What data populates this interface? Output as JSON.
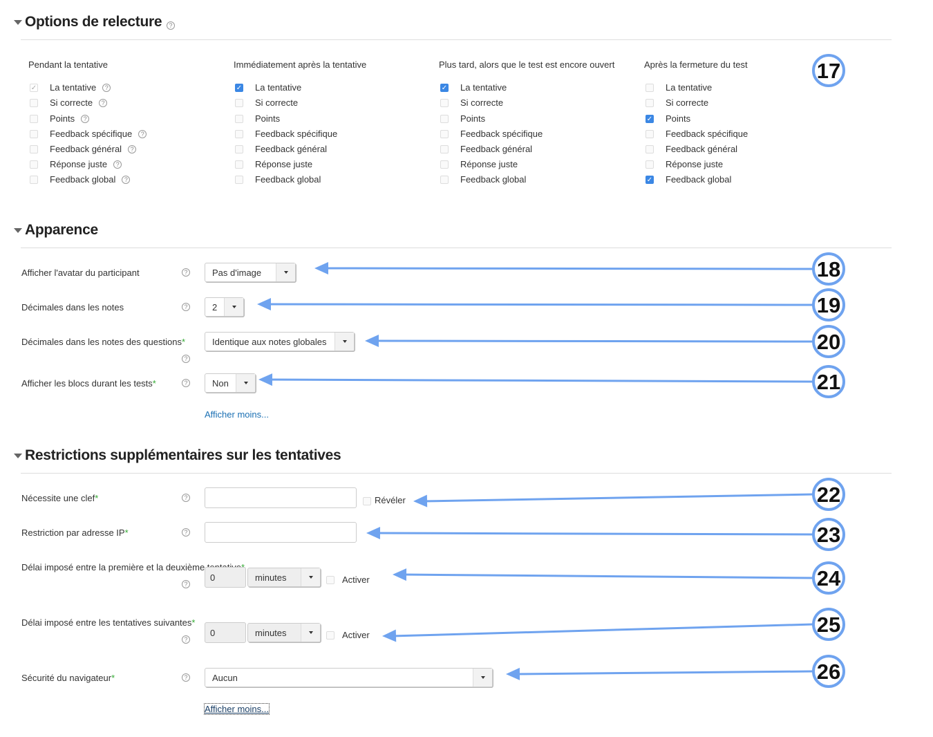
{
  "review": {
    "title": "Options de relecture",
    "columns": [
      {
        "header": "Pendant la tentative",
        "items": [
          {
            "label": "La tentative",
            "checked": true,
            "disabled": true
          },
          {
            "label": "Si correcte",
            "checked": false
          },
          {
            "label": "Points",
            "checked": false
          },
          {
            "label": "Feedback spécifique",
            "checked": false
          },
          {
            "label": "Feedback général",
            "checked": false
          },
          {
            "label": "Réponse juste",
            "checked": false
          },
          {
            "label": "Feedback global",
            "checked": false
          }
        ]
      },
      {
        "header": "Immédiatement après la tentative",
        "items": [
          {
            "label": "La tentative",
            "checked": true
          },
          {
            "label": "Si correcte",
            "checked": false
          },
          {
            "label": "Points",
            "checked": false
          },
          {
            "label": "Feedback spécifique",
            "checked": false
          },
          {
            "label": "Feedback général",
            "checked": false
          },
          {
            "label": "Réponse juste",
            "checked": false
          },
          {
            "label": "Feedback global",
            "checked": false
          }
        ]
      },
      {
        "header": "Plus tard, alors que le test est encore ouvert",
        "items": [
          {
            "label": "La tentative",
            "checked": true
          },
          {
            "label": "Si correcte",
            "checked": false
          },
          {
            "label": "Points",
            "checked": false
          },
          {
            "label": "Feedback spécifique",
            "checked": false
          },
          {
            "label": "Feedback général",
            "checked": false
          },
          {
            "label": "Réponse juste",
            "checked": false
          },
          {
            "label": "Feedback global",
            "checked": false
          }
        ]
      },
      {
        "header": "Après la fermeture du test",
        "items": [
          {
            "label": "La tentative",
            "checked": false
          },
          {
            "label": "Si correcte",
            "checked": false
          },
          {
            "label": "Points",
            "checked": true
          },
          {
            "label": "Feedback spécifique",
            "checked": false
          },
          {
            "label": "Feedback général",
            "checked": false
          },
          {
            "label": "Réponse juste",
            "checked": false
          },
          {
            "label": "Feedback global",
            "checked": true
          }
        ]
      }
    ]
  },
  "appearance": {
    "title": "Apparence",
    "avatar_label": "Afficher l'avatar du participant",
    "avatar_value": "Pas d'image",
    "decimals_label": "Décimales dans les notes",
    "decimals_value": "2",
    "qdecimals_label": "Décimales dans les notes des questions",
    "qdecimals_value": "Identique aux notes globales",
    "blocks_label": "Afficher les blocs durant les tests",
    "blocks_value": "Non",
    "show_less": "Afficher moins..."
  },
  "restrictions": {
    "title": "Restrictions supplémentaires sur les tentatives",
    "password_label": "Nécessite une clef",
    "password_value": "",
    "reveal_label": "Révéler",
    "ip_label": "Restriction par adresse IP",
    "ip_value": "",
    "delay1_label": "Délai imposé entre la première et la deuxième tentative",
    "delay1_value": "0",
    "delay1_unit": "minutes",
    "delay1_enable": "Activer",
    "delay2_label": "Délai imposé entre les tentatives suivantes",
    "delay2_value": "0",
    "delay2_unit": "minutes",
    "delay2_enable": "Activer",
    "browser_label": "Sécurité du navigateur",
    "browser_value": "Aucun",
    "show_less": "Afficher moins..."
  },
  "required_mark": "*",
  "help_icon": "?",
  "annotation_color": "#6fa3ef",
  "annotations": [
    "17",
    "18",
    "19",
    "20",
    "21",
    "22",
    "23",
    "24",
    "25",
    "26"
  ]
}
